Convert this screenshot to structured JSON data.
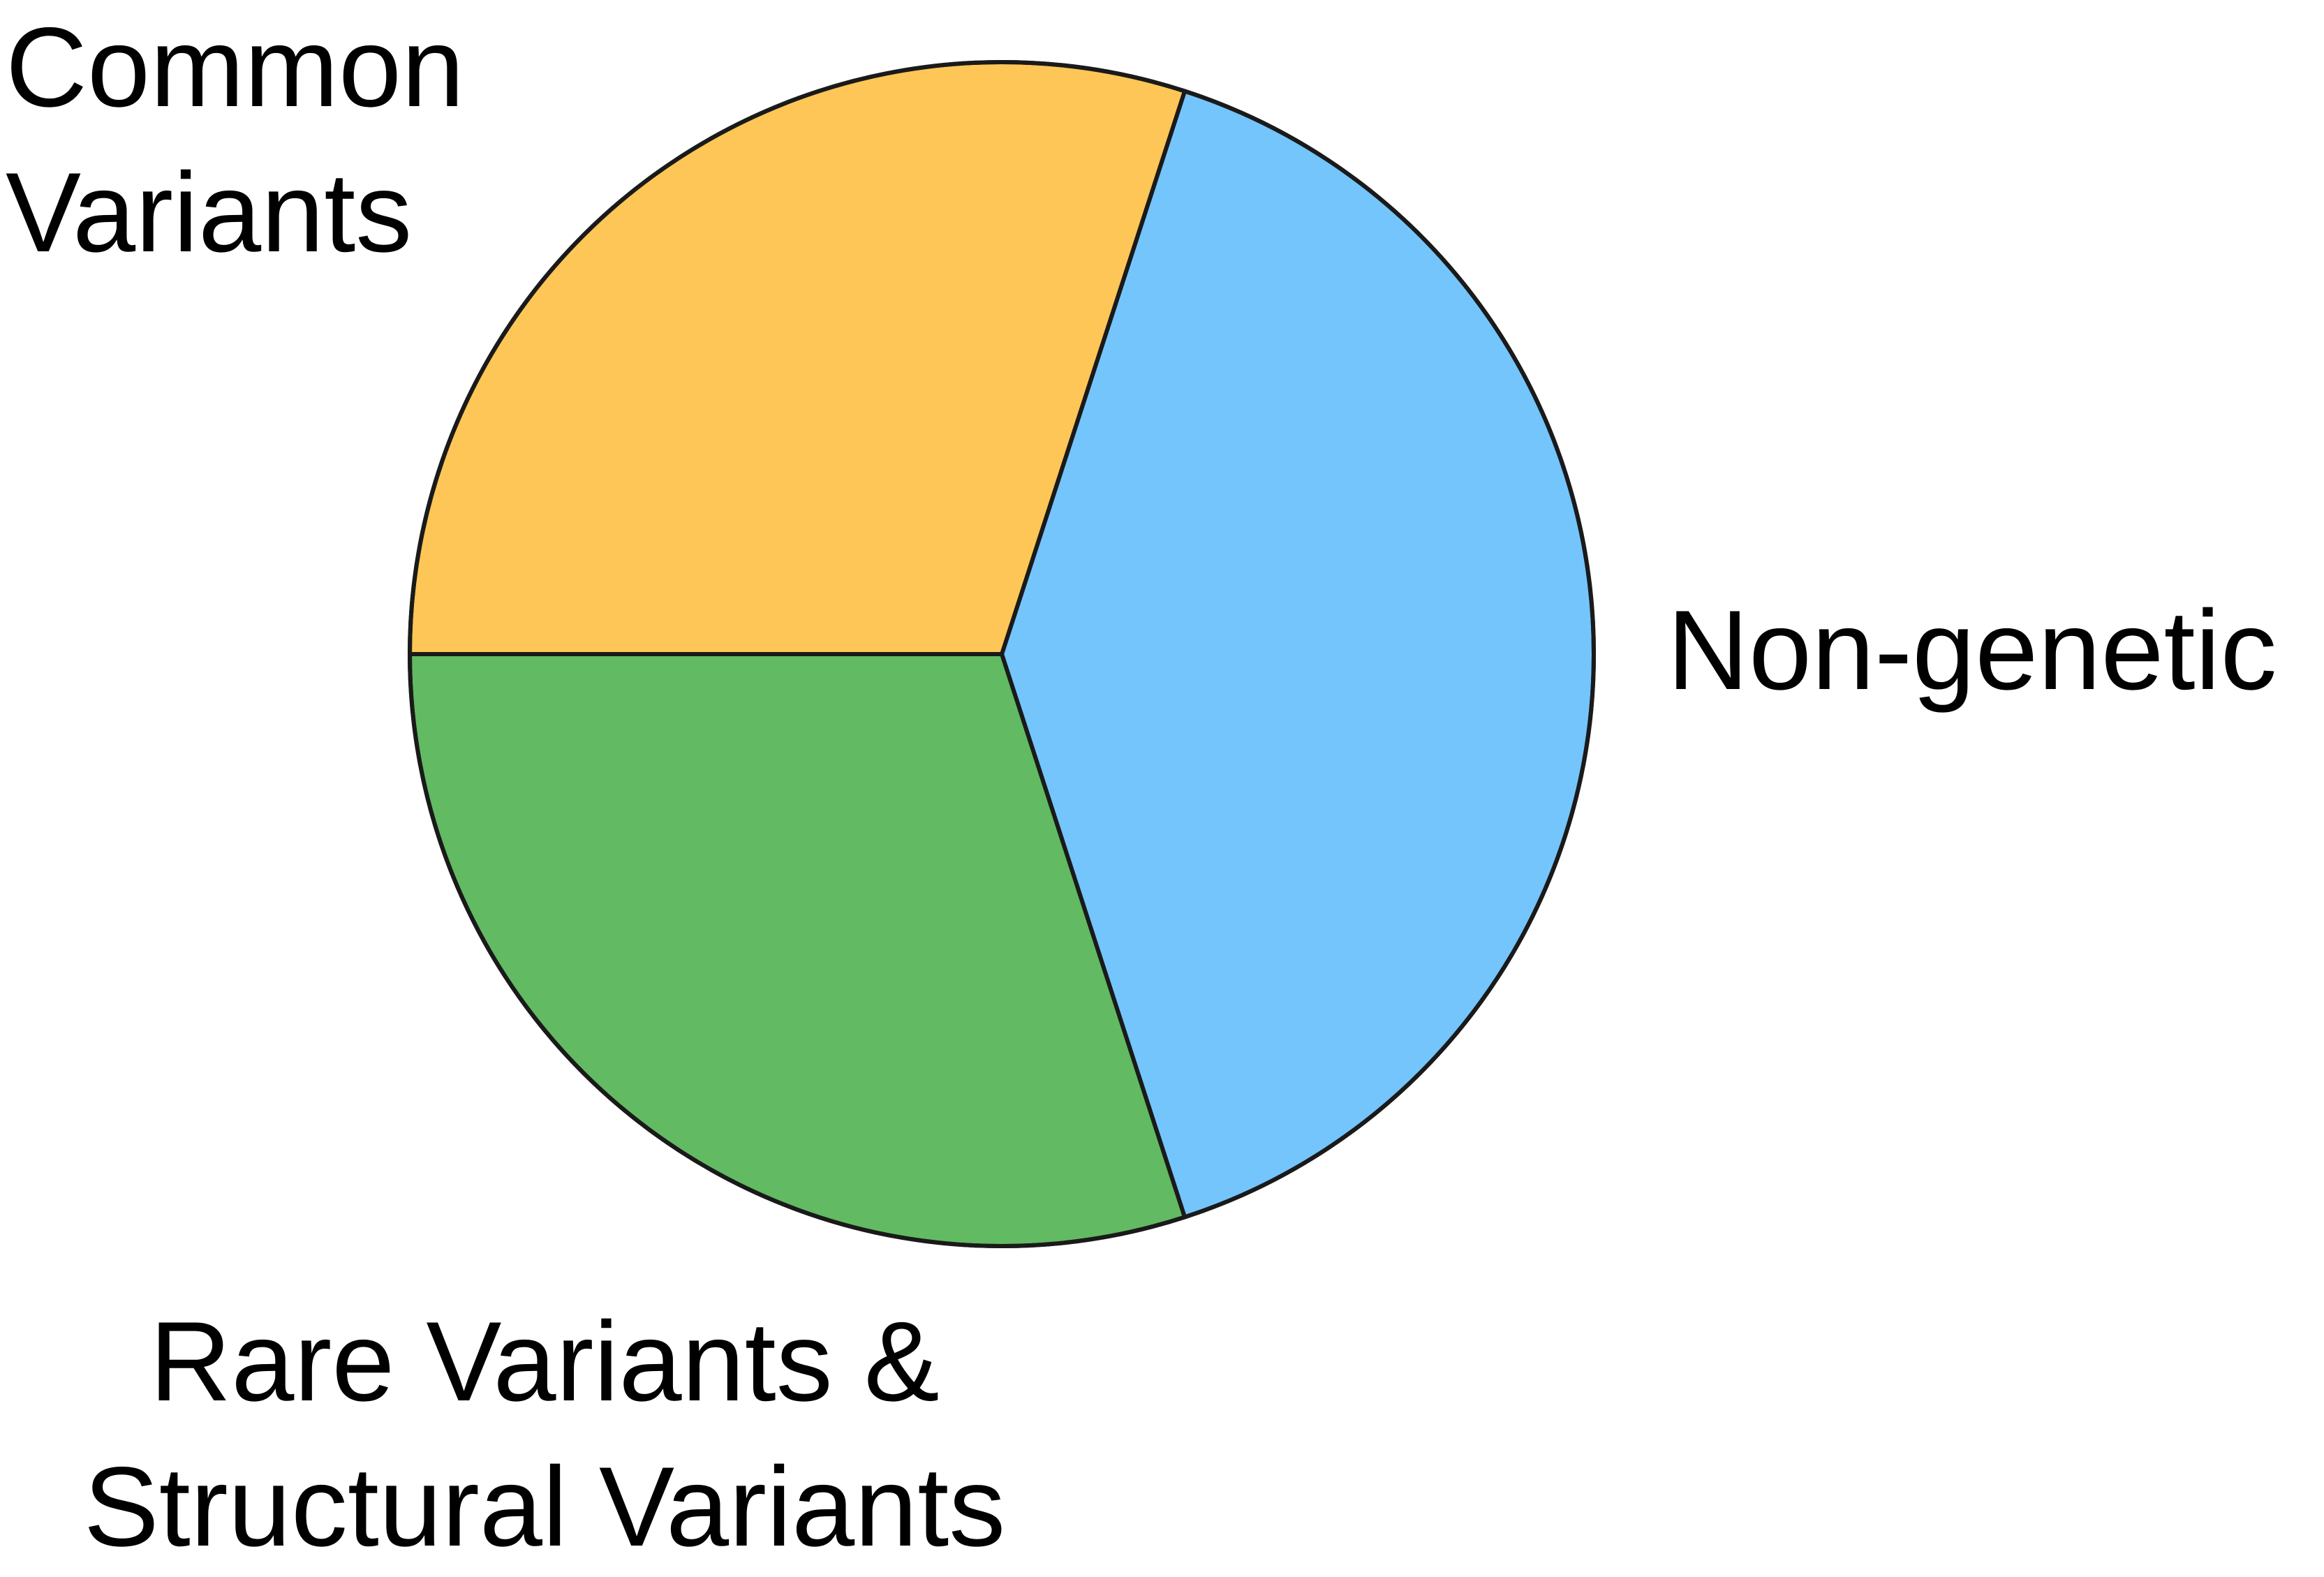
{
  "chart_data": {
    "type": "pie",
    "slices": [
      {
        "label_lines": [
          "Non-genetic"
        ],
        "value": 40,
        "color": "#74C5FC"
      },
      {
        "label_lines": [
          "Rare Variants &",
          "Structural Variants"
        ],
        "value": 30,
        "color": "#62BA63"
      },
      {
        "label_lines": [
          "Common",
          "Variants"
        ],
        "value": 30,
        "color": "#FDC656"
      }
    ],
    "outline_color": "#1A1A1A",
    "legend": "none"
  }
}
